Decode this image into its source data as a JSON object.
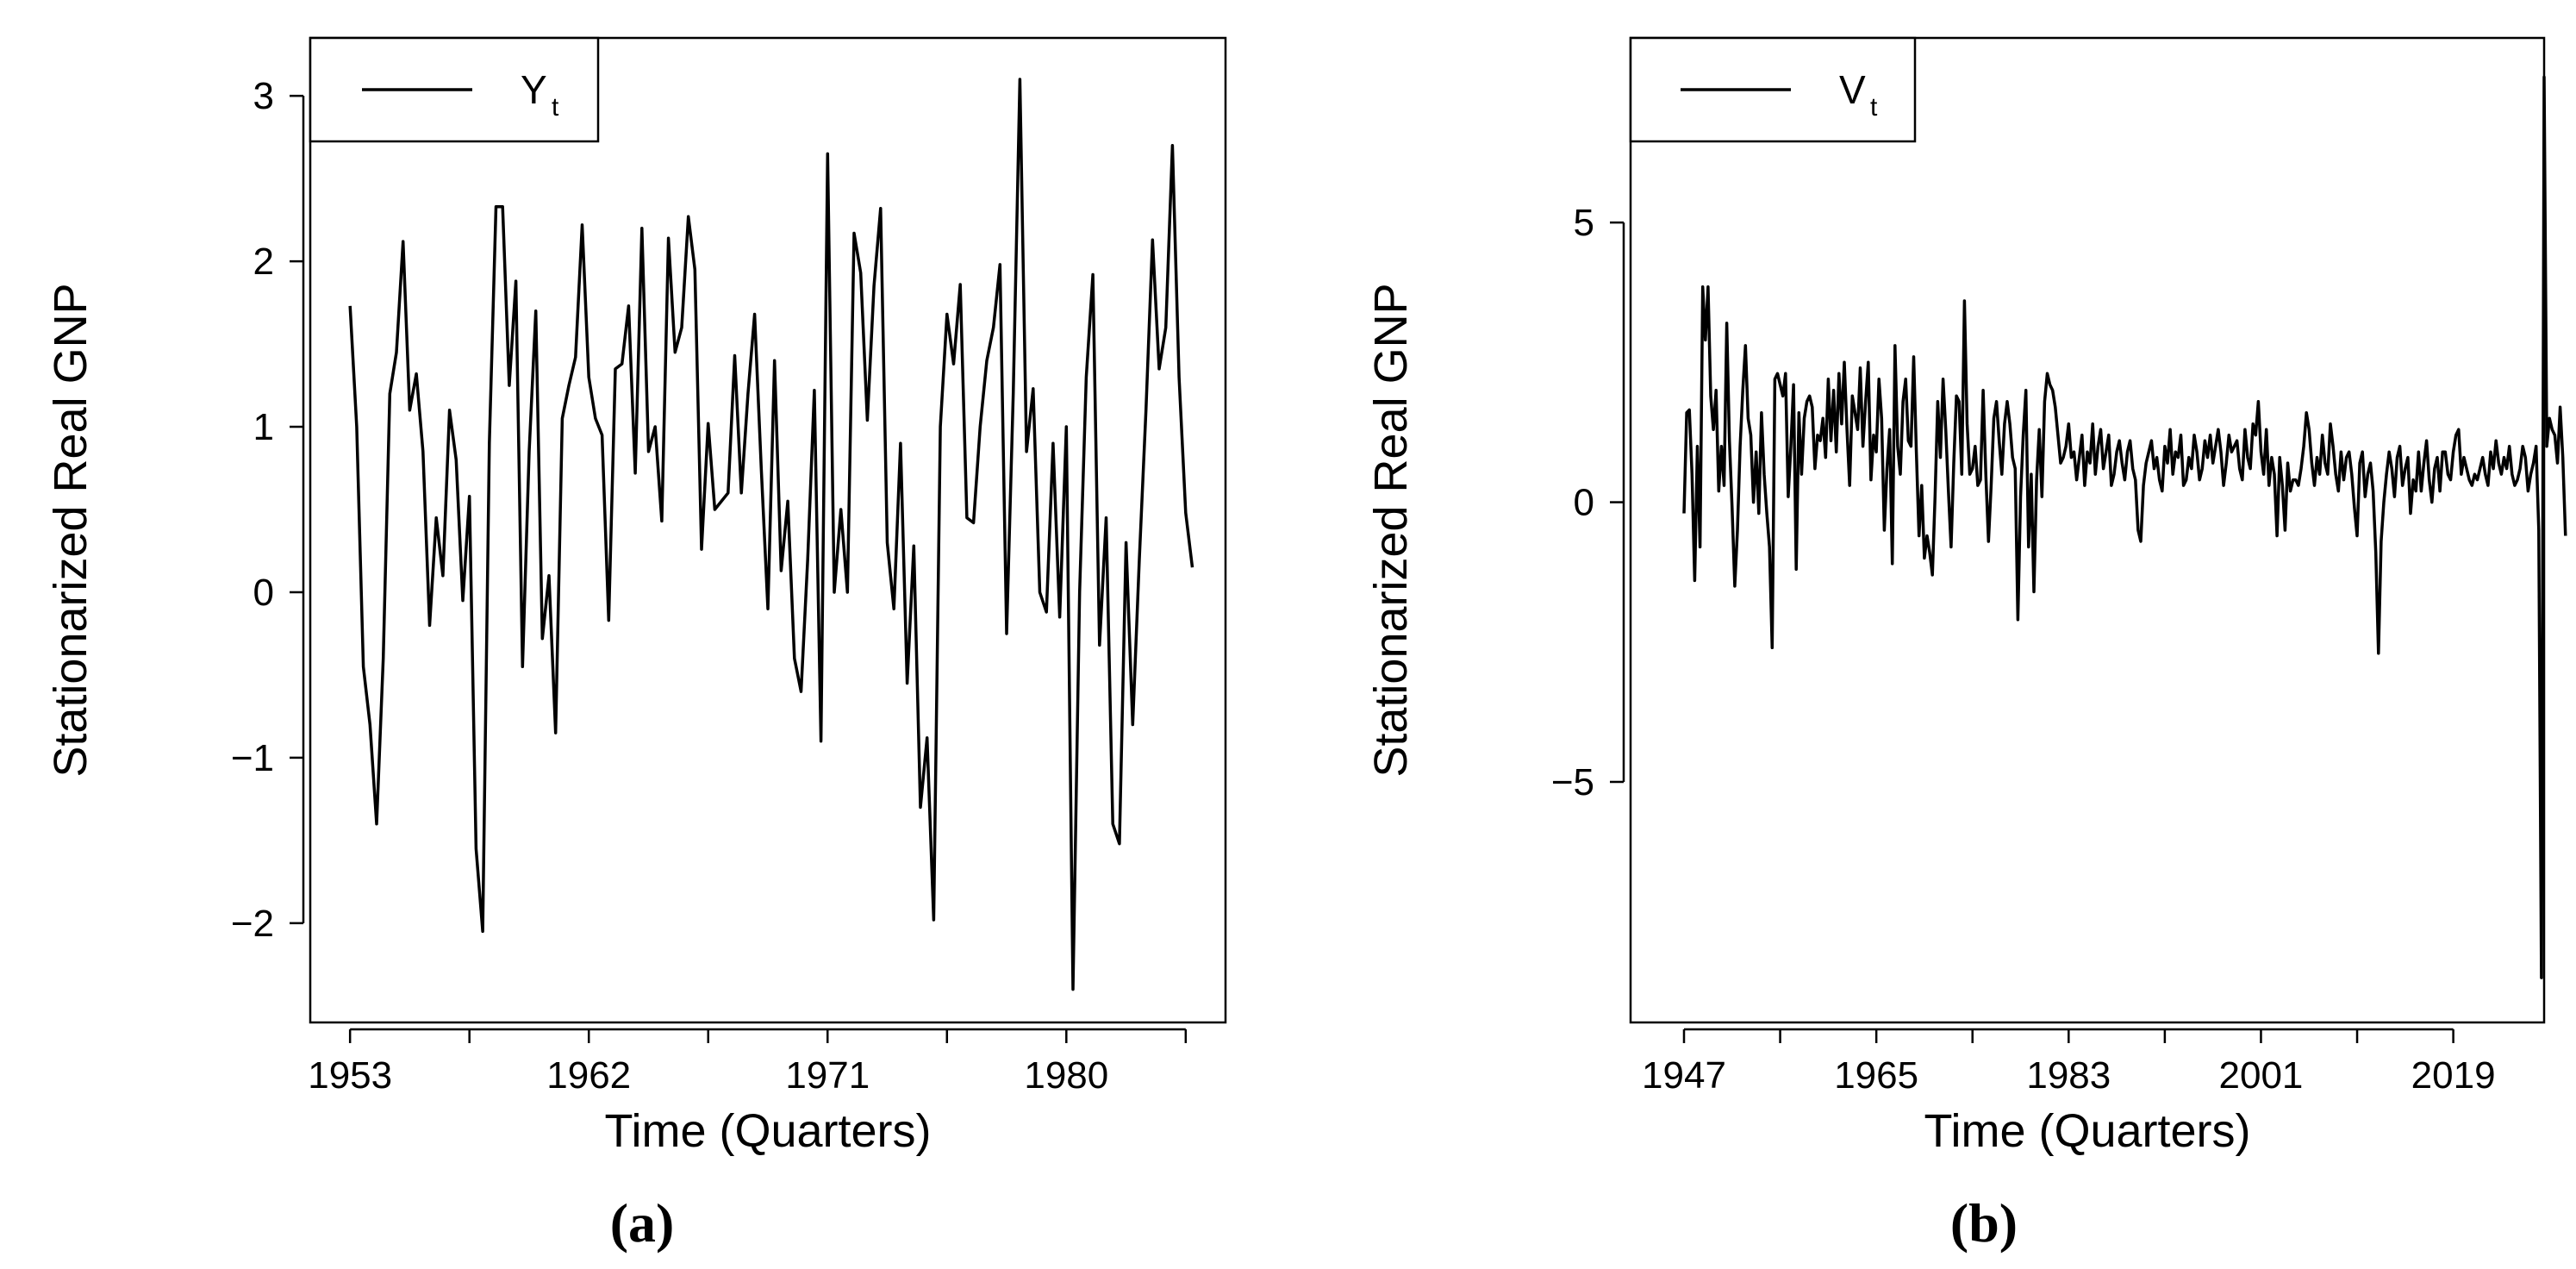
{
  "chart_data": [
    {
      "type": "line",
      "panel_label": "(a)",
      "xlabel": "Time (Quarters)",
      "ylabel": "Stationarized Real GNP",
      "legend": {
        "symbol": "Y",
        "subscript": "t",
        "position": "top-left"
      },
      "xlim": [
        1951.5,
        1986
      ],
      "ylim": [
        -2.6,
        3.35
      ],
      "xticks": [
        1953,
        1957.5,
        1962,
        1966.5,
        1971,
        1975.5,
        1980,
        1984.5
      ],
      "xtick_labels": [
        "1953",
        "",
        "1962",
        "",
        "1971",
        "",
        "1980",
        ""
      ],
      "yticks": [
        -2,
        -1,
        0,
        1,
        2,
        3
      ],
      "ytick_labels": [
        "−2",
        "−1",
        "0",
        "1",
        "2",
        "3"
      ],
      "series": [
        {
          "name": "Y_t",
          "x_start": 1953,
          "x_step": 0.25,
          "values": [
            1.73,
            1.0,
            -0.45,
            -0.8,
            -1.4,
            -0.4,
            1.2,
            1.45,
            2.12,
            1.1,
            1.32,
            0.85,
            -0.2,
            0.45,
            0.1,
            1.1,
            0.8,
            -0.05,
            0.58,
            -1.55,
            -2.05,
            0.9,
            2.33,
            2.33,
            1.25,
            1.88,
            -0.45,
            0.85,
            1.7,
            -0.28,
            0.1,
            -0.85,
            1.05,
            1.25,
            1.42,
            2.22,
            1.3,
            1.05,
            0.95,
            -0.17,
            1.35,
            1.38,
            1.73,
            0.72,
            2.2,
            0.85,
            1.0,
            0.43,
            2.14,
            1.45,
            1.6,
            2.27,
            1.95,
            0.26,
            1.02,
            0.5,
            0.55,
            0.6,
            1.43,
            0.6,
            1.2,
            1.68,
            0.75,
            -0.1,
            1.4,
            0.13,
            0.55,
            -0.4,
            -0.6,
            0.2,
            1.22,
            -0.9,
            2.65,
            0.0,
            0.5,
            0.0,
            2.17,
            1.93,
            1.04,
            1.85,
            2.32,
            0.3,
            -0.1,
            0.9,
            -0.55,
            0.28,
            -1.3,
            -0.88,
            -1.98,
            1.0,
            1.68,
            1.38,
            1.86,
            0.45,
            0.42,
            1.0,
            1.4,
            1.6,
            1.98,
            -0.25,
            1.2,
            3.1,
            0.85,
            1.23,
            0.0,
            -0.12,
            0.9,
            -0.15,
            1.0,
            -2.4,
            0.0,
            1.3,
            1.92,
            -0.32,
            0.45,
            -1.4,
            -1.52,
            0.3,
            -0.8,
            0.2,
            1.1,
            2.13,
            1.35,
            1.6,
            2.7,
            1.3,
            0.48,
            0.15
          ]
        }
      ]
    },
    {
      "type": "line",
      "panel_label": "(b)",
      "xlabel": "Time (Quarters)",
      "ylabel": "Stationarized Real GNP",
      "legend": {
        "symbol": "V",
        "subscript": "t",
        "position": "top-left"
      },
      "xlim": [
        1942,
        2027.5
      ],
      "ylim": [
        -9.3,
        8.3
      ],
      "xticks": [
        1947,
        1956,
        1965,
        1974,
        1983,
        1992,
        2001,
        2010,
        2019
      ],
      "xtick_labels": [
        "1947",
        "",
        "1965",
        "",
        "1983",
        "",
        "2001",
        "",
        "2019"
      ],
      "yticks": [
        -5,
        0,
        5
      ],
      "ytick_labels": [
        "−5",
        "0",
        "5"
      ],
      "series": [
        {
          "name": "V_t",
          "x_start": 1947,
          "x_step": 0.25,
          "values": [
            -0.2,
            1.6,
            1.65,
            0.5,
            -1.4,
            1.0,
            -0.8,
            3.85,
            2.9,
            3.85,
            1.9,
            1.3,
            2.0,
            0.2,
            1.0,
            0.3,
            3.2,
            1.1,
            -0.1,
            -1.5,
            -0.5,
            1.0,
            2.0,
            2.8,
            1.5,
            1.2,
            0.0,
            0.9,
            -0.2,
            1.6,
            0.5,
            -0.2,
            -0.8,
            -2.6,
            2.2,
            2.3,
            2.1,
            1.9,
            2.3,
            0.1,
            1.0,
            2.1,
            -1.2,
            1.6,
            0.5,
            1.5,
            1.8,
            1.9,
            1.7,
            0.6,
            1.2,
            1.1,
            1.5,
            0.8,
            2.2,
            1.1,
            2.0,
            0.9,
            2.3,
            1.4,
            2.5,
            1.3,
            0.3,
            1.9,
            1.6,
            1.3,
            2.4,
            1.0,
            1.8,
            2.5,
            0.4,
            1.2,
            0.9,
            2.2,
            1.5,
            -0.5,
            0.6,
            1.3,
            -1.1,
            2.8,
            1.0,
            0.5,
            1.8,
            2.2,
            1.1,
            1.0,
            2.6,
            0.9,
            -0.6,
            0.3,
            -1.0,
            -0.6,
            -0.9,
            -1.3,
            0.1,
            1.8,
            0.8,
            2.2,
            1.3,
            0.2,
            -0.8,
            0.7,
            1.9,
            1.8,
            0.5,
            3.6,
            1.4,
            0.5,
            0.6,
            1.0,
            0.3,
            0.4,
            2.0,
            0.5,
            -0.7,
            0.3,
            1.5,
            1.8,
            1.1,
            0.5,
            1.4,
            1.8,
            1.4,
            0.8,
            0.6,
            -2.1,
            0.1,
            1.2,
            2.0,
            -0.8,
            0.5,
            -1.6,
            0.4,
            1.3,
            0.1,
            1.8,
            2.3,
            2.1,
            2.0,
            1.7,
            1.2,
            0.7,
            0.8,
            1.0,
            1.4,
            0.8,
            0.9,
            0.4,
            0.8,
            1.2,
            0.3,
            0.9,
            0.7,
            1.4,
            0.5,
            1.0,
            1.3,
            0.6,
            0.9,
            1.2,
            0.3,
            0.5,
            0.9,
            1.1,
            0.7,
            0.4,
            0.9,
            1.1,
            0.6,
            0.4,
            -0.5,
            -0.7,
            0.3,
            0.7,
            0.9,
            1.1,
            0.6,
            0.8,
            0.4,
            0.2,
            1.0,
            0.7,
            1.3,
            0.5,
            0.9,
            0.8,
            1.2,
            0.3,
            0.4,
            0.8,
            0.6,
            1.2,
            0.9,
            0.4,
            0.6,
            1.1,
            0.8,
            1.2,
            0.7,
            1.0,
            1.3,
            0.9,
            0.3,
            0.7,
            1.2,
            0.9,
            1.0,
            1.1,
            0.6,
            0.4,
            1.3,
            0.8,
            0.6,
            1.4,
            1.2,
            1.8,
            0.9,
            0.5,
            1.3,
            0.3,
            0.8,
            0.5,
            -0.6,
            0.8,
            0.3,
            -0.5,
            0.7,
            0.2,
            0.4,
            0.4,
            0.3,
            0.6,
            1.0,
            1.6,
            1.3,
            0.7,
            0.3,
            0.8,
            0.5,
            1.2,
            0.7,
            0.5,
            1.4,
            1.0,
            0.5,
            0.2,
            0.9,
            0.4,
            0.8,
            0.9,
            0.5,
            -0.1,
            -0.6,
            0.7,
            0.9,
            0.1,
            0.5,
            0.7,
            0.2,
            -0.9,
            -2.7,
            -0.7,
            0.0,
            0.5,
            0.9,
            0.6,
            0.1,
            0.8,
            1.0,
            0.3,
            0.6,
            0.8,
            -0.2,
            0.4,
            0.2,
            0.9,
            0.2,
            0.7,
            1.1,
            0.4,
            0.0,
            0.6,
            0.8,
            0.2,
            0.9,
            0.9,
            0.5,
            0.4,
            0.9,
            1.2,
            1.3,
            0.5,
            0.8,
            0.6,
            0.4,
            0.3,
            0.5,
            0.4,
            0.6,
            0.8,
            0.5,
            0.3,
            0.9,
            0.6,
            1.1,
            0.7,
            0.5,
            0.8,
            0.6,
            1.0,
            0.5,
            0.3,
            0.4,
            0.6,
            1.0,
            0.8,
            0.2,
            0.5,
            0.7,
            1.0,
            -0.5,
            -8.5,
            7.6,
            1.0,
            1.5,
            1.3,
            1.2,
            0.7,
            1.7,
            0.8,
            -0.6
          ]
        }
      ]
    }
  ]
}
